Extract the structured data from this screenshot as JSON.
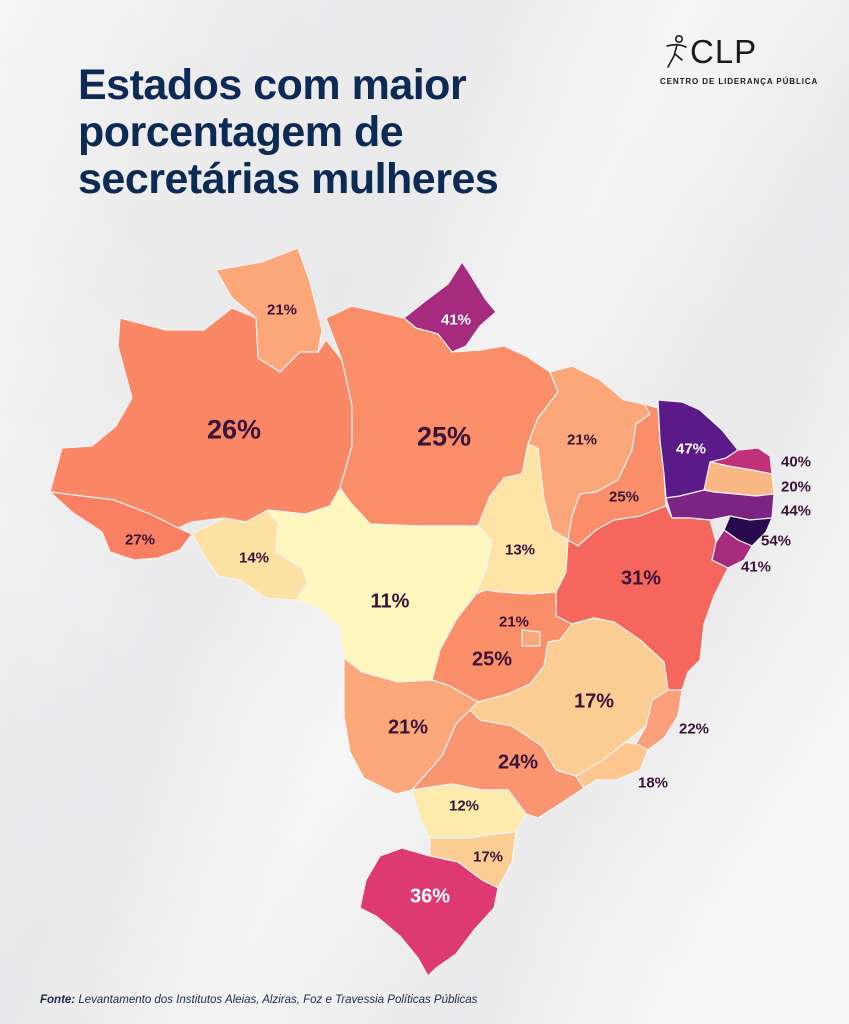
{
  "title": {
    "line1": "Estados com maior",
    "line2": "porcentagem de",
    "line3": "secretárias mulheres"
  },
  "logo": {
    "name": "CLP",
    "subtitle": "CENTRO DE LIDERANÇA PÚBLICA",
    "icon": "runner-figure-icon"
  },
  "colors": {
    "11": "#fdf6bd",
    "12": "#fdebad",
    "13": "#fde4a6",
    "14": "#fde0a4",
    "17": "#fccd93",
    "18": "#fcc68e",
    "20": "#fbb783",
    "21": "#fba77a",
    "22": "#fba07a",
    "24": "#fa9571",
    "25": "#fa8e69",
    "26": "#fa8766",
    "27": "#f97f63",
    "31": "#f5665c",
    "36": "#dc3a70",
    "40": "#c2307a",
    "41": "#a62a7e",
    "44": "#7c2383",
    "47": "#5a1a88",
    "54": "#2a0a4e"
  },
  "states": [
    {
      "name": "Roraima",
      "value": "21%",
      "pct": 21
    },
    {
      "name": "Amapá",
      "value": "41%",
      "pct": 41
    },
    {
      "name": "Amazonas",
      "value": "26%",
      "pct": 26
    },
    {
      "name": "Pará",
      "value": "25%",
      "pct": 25
    },
    {
      "name": "Acre",
      "value": "27%",
      "pct": 27
    },
    {
      "name": "Rondônia",
      "value": "14%",
      "pct": 14
    },
    {
      "name": "Mato Grosso",
      "value": "11%",
      "pct": 11
    },
    {
      "name": "Maranhão",
      "value": "21%",
      "pct": 21
    },
    {
      "name": "Piauí",
      "value": "25%",
      "pct": 25
    },
    {
      "name": "Tocantins",
      "value": "13%",
      "pct": 13
    },
    {
      "name": "Ceará",
      "value": "47%",
      "pct": 47
    },
    {
      "name": "Rio Grande do Norte",
      "value": "40%",
      "pct": 40
    },
    {
      "name": "Paraíba",
      "value": "20%",
      "pct": 20
    },
    {
      "name": "Pernambuco",
      "value": "44%",
      "pct": 44
    },
    {
      "name": "Alagoas",
      "value": "54%",
      "pct": 54
    },
    {
      "name": "Sergipe",
      "value": "41%",
      "pct": 41
    },
    {
      "name": "Bahia",
      "value": "31%",
      "pct": 31
    },
    {
      "name": "Distrito Federal",
      "value": "21%",
      "pct": 21
    },
    {
      "name": "Goiás",
      "value": "25%",
      "pct": 25
    },
    {
      "name": "Minas Gerais",
      "value": "17%",
      "pct": 17
    },
    {
      "name": "Espírito Santo",
      "value": "22%",
      "pct": 22
    },
    {
      "name": "Mato Grosso do Sul",
      "value": "21%",
      "pct": 21
    },
    {
      "name": "São Paulo",
      "value": "24%",
      "pct": 24
    },
    {
      "name": "Rio de Janeiro",
      "value": "18%",
      "pct": 18
    },
    {
      "name": "Paraná",
      "value": "12%",
      "pct": 12
    },
    {
      "name": "Santa Catarina",
      "value": "17%",
      "pct": 17
    },
    {
      "name": "Rio Grande do Sul",
      "value": "36%",
      "pct": 36
    }
  ],
  "source": {
    "label": "Fonte:",
    "text": "Levantamento dos Institutos Aleias, Alziras, Foz e Travessia Políticas Públicas"
  }
}
